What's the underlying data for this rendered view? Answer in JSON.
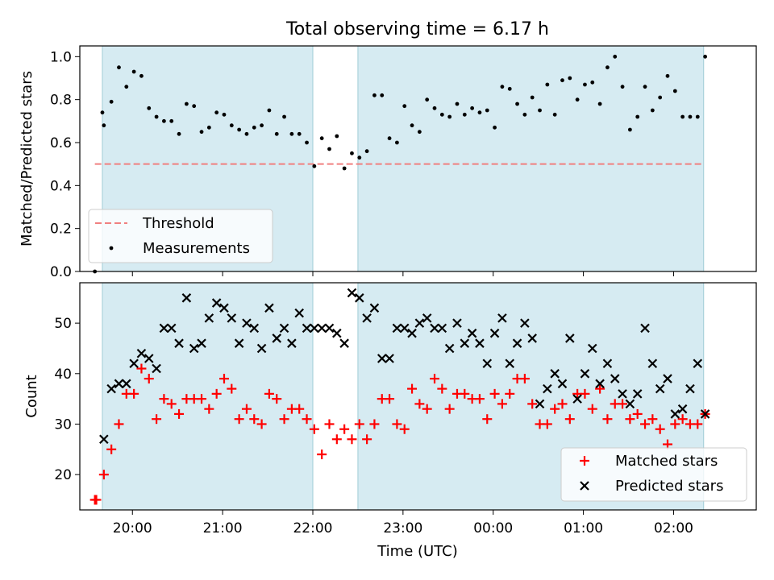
{
  "chart_data": [
    {
      "type": "scatter",
      "title": "Total observing time = 6.17 h",
      "ylabel": "Matched/Predicted stars",
      "ylim": [
        0,
        1.05
      ],
      "yticks": [
        "0.0",
        "0.2",
        "0.4",
        "0.6",
        "0.8",
        "1.0"
      ],
      "xlim": [
        "19:25",
        "02:55"
      ],
      "shaded_intervals": [
        [
          "19:40",
          "22:00"
        ],
        [
          "22:30",
          "02:20"
        ]
      ],
      "threshold": {
        "name": "Threshold",
        "value": 0.5,
        "x_range": [
          "19:35",
          "02:20"
        ],
        "color": "#f08080"
      },
      "legend": {
        "placement": "lower-left"
      },
      "series": [
        {
          "name": "Measurements",
          "marker": "dot",
          "color": "#000000",
          "x": [
            "19:35",
            "19:40",
            "19:41",
            "19:46",
            "19:51",
            "19:56",
            "20:01",
            "20:06",
            "20:11",
            "20:16",
            "20:21",
            "20:26",
            "20:31",
            "20:36",
            "20:41",
            "20:46",
            "20:51",
            "20:56",
            "21:01",
            "21:06",
            "21:11",
            "21:16",
            "21:21",
            "21:26",
            "21:31",
            "21:36",
            "21:41",
            "21:46",
            "21:51",
            "21:56",
            "22:01",
            "22:06",
            "22:11",
            "22:16",
            "22:21",
            "22:26",
            "22:31",
            "22:36",
            "22:41",
            "22:46",
            "22:51",
            "22:56",
            "23:01",
            "23:06",
            "23:11",
            "23:16",
            "23:21",
            "23:26",
            "23:31",
            "23:36",
            "23:41",
            "23:46",
            "23:51",
            "23:56",
            "00:01",
            "00:06",
            "00:11",
            "00:16",
            "00:21",
            "00:26",
            "00:31",
            "00:36",
            "00:41",
            "00:46",
            "00:51",
            "00:56",
            "01:01",
            "01:06",
            "01:11",
            "01:16",
            "01:21",
            "01:26",
            "01:31",
            "01:36",
            "01:41",
            "01:46",
            "01:51",
            "01:56",
            "02:01",
            "02:06",
            "02:11",
            "02:16",
            "02:21"
          ],
          "y": [
            0,
            0.74,
            0.68,
            0.79,
            0.95,
            0.86,
            0.93,
            0.91,
            0.76,
            0.72,
            0.7,
            0.7,
            0.64,
            0.78,
            0.77,
            0.65,
            0.67,
            0.74,
            0.73,
            0.68,
            0.66,
            0.64,
            0.67,
            0.68,
            0.75,
            0.64,
            0.72,
            0.64,
            0.64,
            0.6,
            0.49,
            0.62,
            0.57,
            0.63,
            0.48,
            0.55,
            0.53,
            0.56,
            0.82,
            0.82,
            0.62,
            0.6,
            0.77,
            0.68,
            0.65,
            0.8,
            0.76,
            0.73,
            0.72,
            0.78,
            0.73,
            0.76,
            0.74,
            0.75,
            0.67,
            0.86,
            0.85,
            0.78,
            0.73,
            0.81,
            0.75,
            0.87,
            0.73,
            0.89,
            0.9,
            0.8,
            0.87,
            0.88,
            0.78,
            0.95,
            1.0,
            0.86,
            0.66,
            0.72,
            0.86,
            0.75,
            0.81,
            0.91,
            0.84,
            0.72,
            0.72,
            0.72,
            1.0
          ]
        }
      ]
    },
    {
      "type": "scatter",
      "xlabel": "Time (UTC)",
      "ylabel": "Count",
      "ylim": [
        13,
        58
      ],
      "yticks": [
        "20",
        "30",
        "40",
        "50"
      ],
      "xlim": [
        "19:25",
        "02:55"
      ],
      "xticks": [
        "20:00",
        "21:00",
        "22:00",
        "23:00",
        "00:00",
        "01:00",
        "02:00"
      ],
      "shaded_intervals": [
        [
          "19:40",
          "22:00"
        ],
        [
          "22:30",
          "02:20"
        ]
      ],
      "legend": {
        "placement": "lower-right"
      },
      "series": [
        {
          "name": "Matched stars",
          "marker": "plus",
          "color": "#ff0000",
          "x": [
            "19:35",
            "19:36",
            "19:41",
            "19:46",
            "19:51",
            "19:56",
            "20:01",
            "20:06",
            "20:11",
            "20:16",
            "20:21",
            "20:26",
            "20:31",
            "20:36",
            "20:41",
            "20:46",
            "20:51",
            "20:56",
            "21:01",
            "21:06",
            "21:11",
            "21:16",
            "21:21",
            "21:26",
            "21:31",
            "21:36",
            "21:41",
            "21:46",
            "21:51",
            "21:56",
            "22:01",
            "22:06",
            "22:11",
            "22:16",
            "22:21",
            "22:26",
            "22:31",
            "22:36",
            "22:41",
            "22:46",
            "22:51",
            "22:56",
            "23:01",
            "23:06",
            "23:11",
            "23:16",
            "23:21",
            "23:26",
            "23:31",
            "23:36",
            "23:41",
            "23:46",
            "23:51",
            "23:56",
            "00:01",
            "00:06",
            "00:11",
            "00:16",
            "00:21",
            "00:26",
            "00:31",
            "00:36",
            "00:41",
            "00:46",
            "00:51",
            "00:56",
            "01:01",
            "01:06",
            "01:11",
            "01:16",
            "01:21",
            "01:26",
            "01:31",
            "01:36",
            "01:41",
            "01:46",
            "01:51",
            "01:56",
            "02:01",
            "02:06",
            "02:11",
            "02:16",
            "02:21"
          ],
          "y": [
            15,
            15,
            20,
            25,
            30,
            36,
            36,
            41,
            39,
            31,
            35,
            34,
            32,
            35,
            35,
            35,
            33,
            36,
            39,
            37,
            31,
            33,
            31,
            30,
            36,
            35,
            31,
            33,
            33,
            31,
            29,
            24,
            30,
            27,
            29,
            27,
            30,
            27,
            30,
            35,
            35,
            30,
            29,
            37,
            34,
            33,
            39,
            37,
            33,
            36,
            36,
            35,
            35,
            31,
            36,
            34,
            36,
            39,
            39,
            34,
            30,
            30,
            33,
            34,
            31,
            36,
            36,
            33,
            37,
            31,
            34,
            34,
            31,
            32,
            30,
            31,
            29,
            26,
            30,
            31,
            30,
            30,
            32
          ]
        },
        {
          "name": "Predicted stars",
          "marker": "x",
          "color": "#000000",
          "x": [
            "19:41",
            "19:46",
            "19:51",
            "19:56",
            "20:01",
            "20:06",
            "20:11",
            "20:16",
            "20:21",
            "20:26",
            "20:31",
            "20:36",
            "20:41",
            "20:46",
            "20:51",
            "20:56",
            "21:01",
            "21:06",
            "21:11",
            "21:16",
            "21:21",
            "21:26",
            "21:31",
            "21:36",
            "21:41",
            "21:46",
            "21:51",
            "21:56",
            "22:01",
            "22:06",
            "22:11",
            "22:16",
            "22:21",
            "22:26",
            "22:31",
            "22:36",
            "22:41",
            "22:46",
            "22:51",
            "22:56",
            "23:01",
            "23:06",
            "23:11",
            "23:16",
            "23:21",
            "23:26",
            "23:31",
            "23:36",
            "23:41",
            "23:46",
            "23:51",
            "23:56",
            "00:01",
            "00:06",
            "00:11",
            "00:16",
            "00:21",
            "00:26",
            "00:31",
            "00:36",
            "00:41",
            "00:46",
            "00:51",
            "00:56",
            "01:01",
            "01:06",
            "01:11",
            "01:16",
            "01:21",
            "01:26",
            "01:31",
            "01:36",
            "01:41",
            "01:46",
            "01:51",
            "01:56",
            "02:01",
            "02:06",
            "02:11",
            "02:16",
            "02:21"
          ],
          "y": [
            27,
            37,
            38,
            38,
            42,
            44,
            43,
            41,
            49,
            49,
            46,
            55,
            45,
            46,
            51,
            54,
            53,
            51,
            46,
            50,
            49,
            45,
            53,
            47,
            49,
            46,
            52,
            49,
            49,
            49,
            49,
            48,
            46,
            56,
            55,
            51,
            53,
            43,
            43,
            49,
            49,
            48,
            50,
            51,
            49,
            49,
            45,
            50,
            46,
            48,
            46,
            42,
            48,
            51,
            42,
            46,
            50,
            47,
            34,
            37,
            40,
            38,
            47,
            35,
            40,
            45,
            38,
            42,
            39,
            36,
            34,
            36,
            49,
            42,
            37,
            39,
            32,
            33,
            37,
            42,
            32
          ]
        }
      ]
    }
  ]
}
